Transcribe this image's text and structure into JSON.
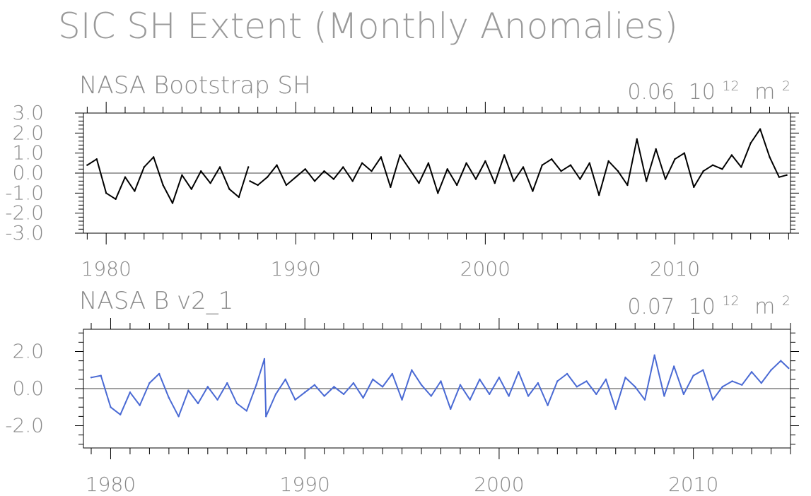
{
  "title": "SIC SH Extent (Monthly Anomalies)",
  "chart_data": [
    {
      "type": "line",
      "panel_title": "NASA Bootstrap SH",
      "stat_value": "0.06",
      "stat_base": "10",
      "stat_exp": "12",
      "stat_unit": "m",
      "stat_unit_exp": "2",
      "series": [
        {
          "color": "#000000",
          "x": [
            1979.0,
            1979.5,
            1980.0,
            1980.5,
            1981.0,
            1981.5,
            1982.0,
            1982.5,
            1983.0,
            1983.5,
            1984.0,
            1984.5,
            1985.0,
            1985.5,
            1986.0,
            1986.5,
            1987.0,
            1987.5,
            1987.583,
            1988.0,
            1988.5,
            1989.0,
            1989.5,
            1990.0,
            1990.5,
            1991.0,
            1991.5,
            1992.0,
            1992.5,
            1993.0,
            1993.5,
            1994.0,
            1994.5,
            1995.0,
            1995.5,
            1996.0,
            1996.5,
            1997.0,
            1997.5,
            1998.0,
            1998.5,
            1999.0,
            1999.5,
            2000.0,
            2000.5,
            2001.0,
            2001.5,
            2002.0,
            2002.5,
            2003.0,
            2003.5,
            2004.0,
            2004.5,
            2005.0,
            2005.5,
            2006.0,
            2006.5,
            2007.0,
            2007.5,
            2008.0,
            2008.5,
            2009.0,
            2009.5,
            2010.0,
            2010.5,
            2011.0,
            2011.5,
            2012.0,
            2012.5,
            2013.0,
            2013.5,
            2014.0,
            2014.5,
            2015.0,
            2015.5,
            2015.9
          ],
          "y": [
            0.4,
            0.7,
            -1.0,
            -1.3,
            -0.2,
            -0.9,
            0.3,
            0.8,
            -0.6,
            -1.5,
            -0.1,
            -0.8,
            0.1,
            -0.5,
            0.3,
            -0.8,
            -1.2,
            0.3,
            -0.4,
            -0.6,
            -0.2,
            0.4,
            -0.6,
            -0.2,
            0.2,
            -0.4,
            0.1,
            -0.3,
            0.3,
            -0.4,
            0.5,
            0.1,
            0.8,
            -0.7,
            0.9,
            0.2,
            -0.5,
            0.5,
            -1.0,
            0.2,
            -0.6,
            0.5,
            -0.3,
            0.6,
            -0.5,
            0.9,
            -0.4,
            0.3,
            -0.9,
            0.4,
            0.7,
            0.1,
            0.4,
            -0.3,
            0.5,
            -1.1,
            0.6,
            0.1,
            -0.6,
            1.7,
            -0.4,
            1.2,
            -0.3,
            0.7,
            1.0,
            -0.7,
            0.1,
            0.4,
            0.2,
            0.9,
            0.3,
            1.5,
            2.2,
            0.8,
            -0.2,
            -0.1
          ],
          "gaps_after": [
            1987.5
          ]
        }
      ],
      "xlim": [
        1978.8,
        2016.1
      ],
      "ylim": [
        -3.0,
        3.0
      ],
      "x_ticks": [
        "1980",
        "1990",
        "2000",
        "2010"
      ],
      "y_ticks": [
        "3.0",
        "2.0",
        "1.0",
        "0.0",
        "-1.0",
        "-2.0",
        "-3.0"
      ]
    },
    {
      "type": "line",
      "panel_title": "NASA B v2_1",
      "stat_value": "0.07",
      "stat_base": "10",
      "stat_exp": "12",
      "stat_unit": "m",
      "stat_unit_exp": "2",
      "series": [
        {
          "color": "#4a6ad4",
          "x": [
            1979.0,
            1979.5,
            1980.0,
            1980.5,
            1981.0,
            1981.5,
            1982.0,
            1982.5,
            1983.0,
            1983.5,
            1984.0,
            1984.5,
            1985.0,
            1985.5,
            1986.0,
            1986.5,
            1987.0,
            1987.5,
            1987.917,
            1988.0,
            1988.5,
            1989.0,
            1989.5,
            1990.0,
            1990.5,
            1991.0,
            1991.5,
            1992.0,
            1992.5,
            1993.0,
            1993.5,
            1994.0,
            1994.5,
            1995.0,
            1995.5,
            1996.0,
            1996.5,
            1997.0,
            1997.5,
            1998.0,
            1998.5,
            1999.0,
            1999.5,
            2000.0,
            2000.5,
            2001.0,
            2001.5,
            2002.0,
            2002.5,
            2003.0,
            2003.5,
            2004.0,
            2004.5,
            2005.0,
            2005.5,
            2006.0,
            2006.5,
            2007.0,
            2007.5,
            2008.0,
            2008.5,
            2009.0,
            2009.5,
            2010.0,
            2010.5,
            2011.0,
            2011.5,
            2012.0,
            2012.5,
            2013.0,
            2013.5,
            2014.0,
            2014.5,
            2014.9
          ],
          "y": [
            0.6,
            0.7,
            -1.0,
            -1.4,
            -0.2,
            -0.9,
            0.3,
            0.8,
            -0.5,
            -1.5,
            -0.1,
            -0.8,
            0.1,
            -0.6,
            0.3,
            -0.8,
            -1.2,
            0.2,
            1.6,
            -1.5,
            -0.3,
            0.5,
            -0.6,
            -0.2,
            0.2,
            -0.4,
            0.1,
            -0.3,
            0.3,
            -0.5,
            0.5,
            0.1,
            0.8,
            -0.6,
            1.0,
            0.2,
            -0.4,
            0.4,
            -1.1,
            0.2,
            -0.6,
            0.5,
            -0.3,
            0.6,
            -0.4,
            0.9,
            -0.4,
            0.3,
            -0.9,
            0.4,
            0.8,
            0.1,
            0.4,
            -0.3,
            0.5,
            -1.1,
            0.6,
            0.1,
            -0.6,
            1.8,
            -0.4,
            1.2,
            -0.3,
            0.7,
            1.0,
            -0.6,
            0.1,
            0.4,
            0.2,
            0.9,
            0.3,
            1.0,
            1.5,
            1.1
          ],
          "gaps_after": []
        }
      ],
      "xlim": [
        1978.6,
        2015.0
      ],
      "ylim": [
        -3.2,
        3.2
      ],
      "x_ticks": [
        "1980",
        "1990",
        "2000",
        "2010"
      ],
      "y_ticks": [
        "2.0",
        "0.0",
        "-2.0"
      ]
    }
  ]
}
